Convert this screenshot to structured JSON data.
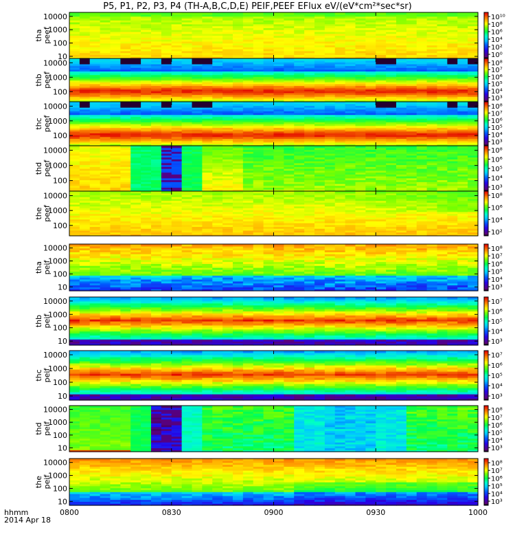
{
  "title": "P5, P1, P2, P3, P4 (TH-A,B,C,D,E) PEIF,PEEF EFlux eV/(eV*cm²*sec*sr)",
  "footer": {
    "row1": "hhmm",
    "row2": "2014 Apr 18"
  },
  "chart_data": {
    "type": "heatmap",
    "x_unit": "hhmm",
    "xlim": [
      "0800",
      "1000"
    ],
    "x_ticks": [
      "0800",
      "0830",
      "0900",
      "0930",
      "1000"
    ],
    "y_scale": "log",
    "panels": [
      {
        "id": "tha-peef",
        "probe": "tha",
        "product": "peef",
        "ylim": [
          7,
          20000
        ],
        "y_ticks": [
          "10000",
          "1000",
          "100",
          "10"
        ],
        "zlim_exp": [
          0,
          10
        ],
        "z_ticks": [
          "10¹⁰",
          "10⁸",
          "10⁶",
          "10⁴",
          "10²",
          "10⁰"
        ],
        "pattern": "high_flat"
      },
      {
        "id": "thb-peef",
        "probe": "thb",
        "product": "peef",
        "ylim": [
          20,
          20000
        ],
        "y_ticks": [
          "10000",
          "1000",
          "100"
        ],
        "zlim_exp": [
          2,
          8
        ],
        "z_ticks": [
          "10⁸",
          "10⁷",
          "10⁶",
          "10⁵",
          "10⁴",
          "10³"
        ],
        "pattern": "band_low"
      },
      {
        "id": "thc-peef",
        "probe": "thc",
        "product": "peef",
        "ylim": [
          20,
          20000
        ],
        "y_ticks": [
          "10000",
          "1000",
          "100"
        ],
        "zlim_exp": [
          2,
          8
        ],
        "z_ticks": [
          "10⁸",
          "10⁷",
          "10⁶",
          "10⁵",
          "10⁴",
          "10³"
        ],
        "pattern": "band_low"
      },
      {
        "id": "thd-peef",
        "probe": "thd",
        "product": "peef",
        "ylim": [
          20,
          20000
        ],
        "y_ticks": [
          "10000",
          "1000",
          "100"
        ],
        "zlim_exp": [
          3,
          8
        ],
        "z_ticks": [
          "10⁸",
          "10⁶",
          "10⁵",
          "10⁴",
          "10³"
        ],
        "pattern": "thd_e"
      },
      {
        "id": "the-peef",
        "probe": "the",
        "product": "peef",
        "ylim": [
          20,
          20000
        ],
        "y_ticks": [
          "10000",
          "1000",
          "100"
        ],
        "zlim_exp": [
          2,
          8
        ],
        "z_ticks": [
          "10⁸",
          "10⁶",
          "10⁴",
          "10²"
        ],
        "pattern": "high_flat2"
      },
      {
        "id": "tha-peif",
        "probe": "tha",
        "product": "peif",
        "ylim": [
          5,
          20000
        ],
        "y_ticks": [
          "10000",
          "1000",
          "100",
          "10"
        ],
        "zlim_exp": [
          3,
          8
        ],
        "z_ticks": [
          "10⁸",
          "10⁷",
          "10⁶",
          "10⁵",
          "10⁴",
          "10³"
        ],
        "pattern": "ion_upper"
      },
      {
        "id": "thb-peif",
        "probe": "thb",
        "product": "peif",
        "ylim": [
          5,
          20000
        ],
        "y_ticks": [
          "10000",
          "1000",
          "100",
          "10"
        ],
        "zlim_exp": [
          3,
          7
        ],
        "z_ticks": [
          "10⁷",
          "10⁶",
          "10⁵",
          "10⁴",
          "10³"
        ],
        "pattern": "ion_band"
      },
      {
        "id": "thc-peif",
        "probe": "thc",
        "product": "peif",
        "ylim": [
          5,
          20000
        ],
        "y_ticks": [
          "10000",
          "1000",
          "100",
          "10"
        ],
        "zlim_exp": [
          3,
          7
        ],
        "z_ticks": [
          "10⁷",
          "10⁶",
          "10⁵",
          "10⁴",
          "10³"
        ],
        "pattern": "ion_band"
      },
      {
        "id": "thd-peif",
        "probe": "thd",
        "product": "peif",
        "ylim": [
          5,
          20000
        ],
        "y_ticks": [
          "10000",
          "1000",
          "100",
          "10"
        ],
        "zlim_exp": [
          3,
          8
        ],
        "z_ticks": [
          "10⁸",
          "10⁷",
          "10⁶",
          "10⁵",
          "10⁴",
          "10³"
        ],
        "pattern": "thd_i"
      },
      {
        "id": "the-peif",
        "probe": "the",
        "product": "peif",
        "ylim": [
          5,
          20000
        ],
        "y_ticks": [
          "10000",
          "1000",
          "100",
          "10"
        ],
        "zlim_exp": [
          3,
          8
        ],
        "z_ticks": [
          "10⁸",
          "10⁷",
          "10⁶",
          "10⁵",
          "10⁴",
          "10³"
        ],
        "pattern": "ion_upper2"
      }
    ]
  }
}
